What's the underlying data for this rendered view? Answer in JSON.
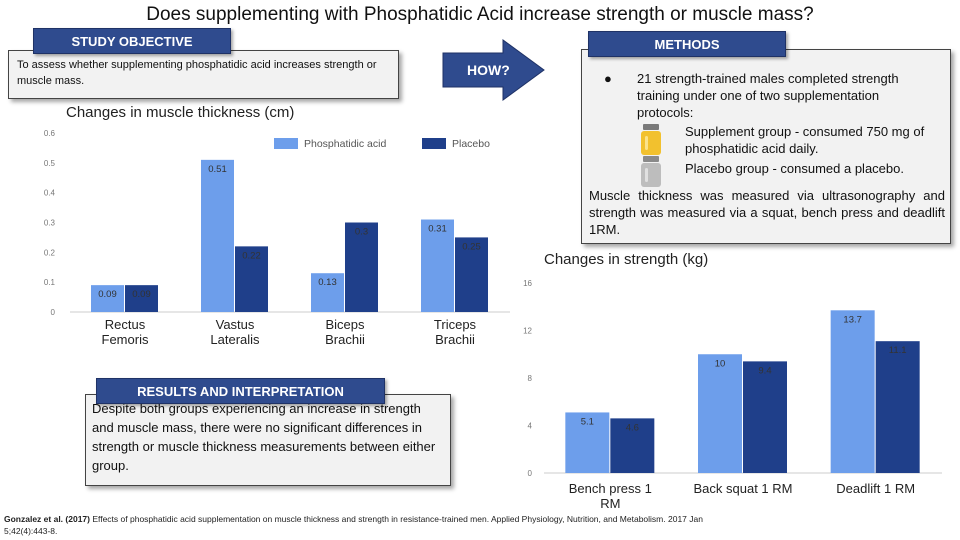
{
  "title": "Does supplementing with Phosphatidic Acid increase strength or muscle mass?",
  "study_objective": {
    "heading": "STUDY OBJECTIVE",
    "text": "To assess whether supplementing phosphatidic acid increases strength or muscle mass."
  },
  "how_arrow": {
    "label": "HOW?"
  },
  "methods": {
    "heading": "METHODS",
    "bullet": "21 strength-trained males completed strength training under one of two supplementation protocols:",
    "bullet_marker": "●",
    "groups": [
      {
        "text": "Supplement group - consumed 750 mg of phosphatidic acid daily.",
        "icon": "yellow-bottle-icon",
        "color": "#f2c12e"
      },
      {
        "text": "Placebo group - consumed a placebo.",
        "icon": "gray-bottle-icon",
        "color": "#bdbdbd"
      }
    ],
    "measurement": "Muscle thickness was measured via ultrasonography and strength was measured via a squat, bench press and deadlift 1RM."
  },
  "results": {
    "heading": "RESULTS AND INTERPRETATION",
    "text": "Despite both groups experiencing an increase in strength and muscle mass, there were no significant differences in strength or muscle thickness measurements between either group."
  },
  "reference": {
    "author": "Gonzalez et al. (2017)",
    "text": " Effects of phosphatidic acid supplementation on muscle thickness and strength in resistance-trained men. Applied Physiology, Nutrition, and Metabolism. 2017 Jan 5;42(4):443-8."
  },
  "chart_data": [
    {
      "type": "bar",
      "title": "Changes in muscle thickness (cm)",
      "categories": [
        "Rectus Femoris",
        "Vastus Lateralis",
        "Biceps Brachii",
        "Triceps Brachii"
      ],
      "category_lines": [
        [
          "Rectus",
          "Femoris"
        ],
        [
          "Vastus",
          "Lateralis"
        ],
        [
          "Biceps",
          "Brachii"
        ],
        [
          "Triceps",
          "Brachii"
        ]
      ],
      "series": [
        {
          "name": "Phosphatidic acid",
          "values": [
            0.09,
            0.51,
            0.13,
            0.31
          ],
          "color": "#6d9eeb"
        },
        {
          "name": "Placebo",
          "values": [
            0.09,
            0.22,
            0.3,
            0.25
          ],
          "color": "#1f3f8a"
        }
      ],
      "ylim": [
        0,
        0.6
      ],
      "yticks": [
        0,
        0.1,
        0.2,
        0.3,
        0.4,
        0.5,
        0.6
      ],
      "ytick_labels": [
        "0",
        "0.1",
        "0.2",
        "0.3",
        "0.4",
        "0.5",
        "0.6"
      ],
      "legend": "top-right",
      "grid": false
    },
    {
      "type": "bar",
      "title": "Changes in strength (kg)",
      "categories": [
        "Bench press 1 RM",
        "Back squat 1 RM",
        "Deadlift 1 RM"
      ],
      "category_lines": [
        [
          "Bench press 1",
          "RM"
        ],
        [
          "Back squat 1 RM"
        ],
        [
          "Deadlift 1 RM"
        ]
      ],
      "series": [
        {
          "values": [
            5.1,
            10,
            13.7
          ],
          "color": "#6d9eeb"
        },
        {
          "values": [
            4.6,
            9.4,
            11.1
          ],
          "color": "#1f3f8a"
        }
      ],
      "ylim": [
        0,
        16
      ],
      "yticks": [
        0,
        4,
        8,
        12,
        16
      ],
      "ytick_labels": [
        "0",
        "4",
        "8",
        "12",
        "16"
      ],
      "grid": false
    }
  ]
}
